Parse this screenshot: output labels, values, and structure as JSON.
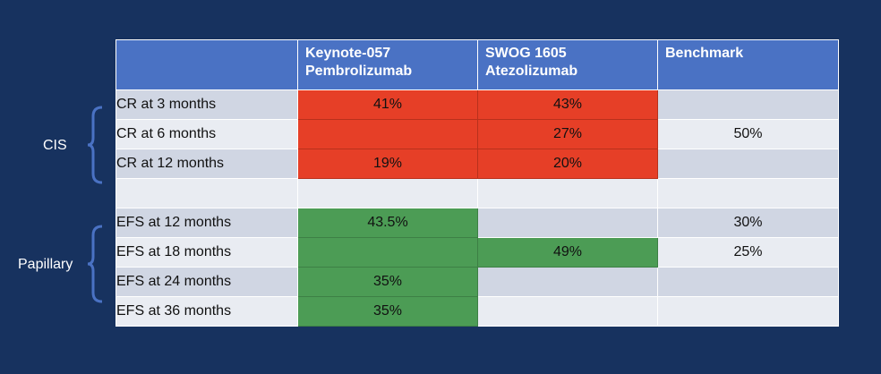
{
  "table": {
    "headers": [
      {
        "lines": [
          ""
        ]
      },
      {
        "lines": [
          "Keynote-057",
          "Pembrolizumab"
        ]
      },
      {
        "lines": [
          "SWOG 1605",
          "Atezolizumab"
        ]
      },
      {
        "lines": [
          "Benchmark"
        ]
      }
    ],
    "rows": [
      {
        "label": "CR at 3 months",
        "keynote": "41%",
        "swog": "43%",
        "benchmark": ""
      },
      {
        "label": "CR at 6 months",
        "keynote": "",
        "swog": "27%",
        "benchmark": "50%"
      },
      {
        "label": "CR at 12 months",
        "keynote": "19%",
        "swog": "20%",
        "benchmark": ""
      },
      {
        "label": "",
        "keynote": "",
        "swog": "",
        "benchmark": ""
      },
      {
        "label": "EFS at 12 months",
        "keynote": "43.5%",
        "swog": "",
        "benchmark": "30%"
      },
      {
        "label": "EFS at 18 months",
        "keynote": "",
        "swog": "49%",
        "benchmark": "25%"
      },
      {
        "label": "EFS at 24 months",
        "keynote": "35%",
        "swog": "",
        "benchmark": ""
      },
      {
        "label": "EFS at 36 months",
        "keynote": "35%",
        "swog": "",
        "benchmark": ""
      }
    ]
  },
  "groups": {
    "cis": "CIS",
    "papillary": "Papillary"
  },
  "colors": {
    "background": "#17325f",
    "header": "#4a72c4",
    "red_highlight": "#e63f27",
    "green_highlight": "#4c9c55",
    "row_dark": "#d0d6e3",
    "row_light": "#e9ecf2"
  }
}
